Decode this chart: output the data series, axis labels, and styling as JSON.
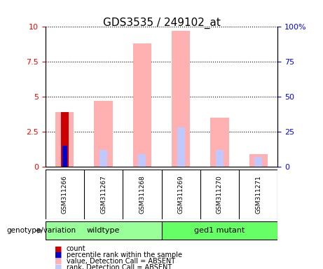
{
  "title": "GDS3535 / 249102_at",
  "samples": [
    "GSM311266",
    "GSM311267",
    "GSM311268",
    "GSM311269",
    "GSM311270",
    "GSM311271"
  ],
  "count_values": [
    3.9,
    0,
    0,
    0,
    0,
    0
  ],
  "percentile_values": [
    1.5,
    0,
    0,
    0,
    0,
    0
  ],
  "value_absent": [
    3.9,
    4.7,
    8.8,
    9.7,
    3.5,
    0.9
  ],
  "rank_absent": [
    1.5,
    1.2,
    0.9,
    2.8,
    1.2,
    0.7
  ],
  "ylim_left": [
    0,
    10
  ],
  "ylim_right": [
    0,
    100
  ],
  "yticks_left": [
    0,
    2.5,
    5,
    7.5,
    10
  ],
  "yticks_right": [
    0,
    25,
    50,
    75,
    100
  ],
  "ytick_labels_left": [
    "0",
    "2.5",
    "5",
    "7.5",
    "10"
  ],
  "ytick_labels_right": [
    "0",
    "25",
    "50",
    "75",
    "100%"
  ],
  "color_count": "#cc0000",
  "color_percentile": "#0000cc",
  "color_value_absent": "#ffb0b0",
  "color_rank_absent": "#c0c8ff",
  "groups": [
    {
      "label": "wildtype",
      "samples": [
        0,
        1,
        2
      ],
      "color": "#99ff99"
    },
    {
      "label": "ged1 mutant",
      "samples": [
        3,
        4,
        5
      ],
      "color": "#66ff66"
    }
  ],
  "group_label_prefix": "genotype/variation",
  "bg_label_area": "#d0d0d0",
  "legend_items": [
    {
      "label": "count",
      "color": "#cc0000"
    },
    {
      "label": "percentile rank within the sample",
      "color": "#0000cc"
    },
    {
      "label": "value, Detection Call = ABSENT",
      "color": "#ffb0b0"
    },
    {
      "label": "rank, Detection Call = ABSENT",
      "color": "#c0c8ff"
    }
  ],
  "bar_width": 0.4
}
